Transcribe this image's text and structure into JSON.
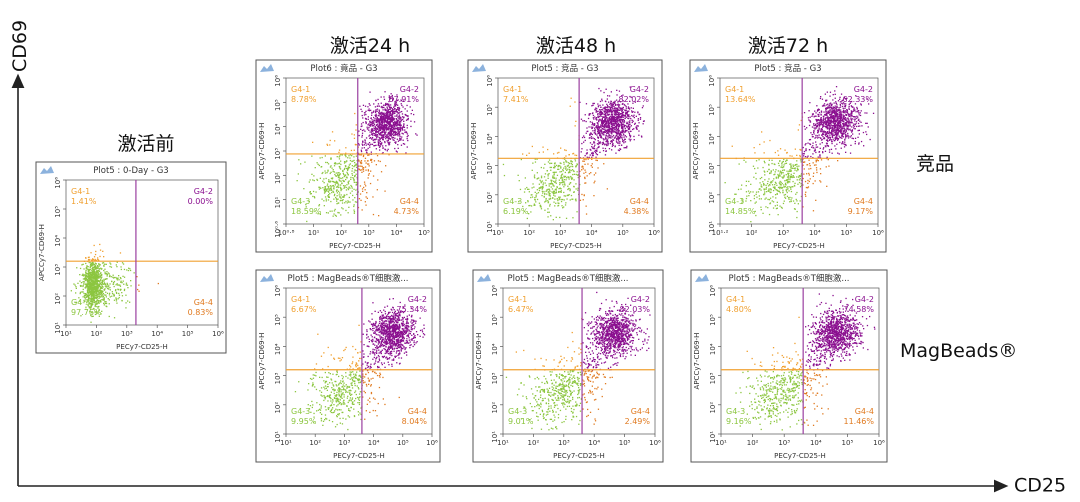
{
  "figure": {
    "y_axis_label": "CD69",
    "x_axis_label": "CD25",
    "row_labels": [
      "竞品",
      "MagBeads®"
    ],
    "colors": {
      "q1": "#f0a030",
      "q2": "#8a0f8f",
      "q3": "#8cc640",
      "q4": "#e07a20",
      "gate_h": "#f0a030",
      "gate_v": "#9b3fa0",
      "icon": "#6f9fd4"
    }
  },
  "chart_data": [
    {
      "id": "pre",
      "type": "scatter",
      "group_label": "激活前",
      "title": "Plot5 : 0-Day - G3",
      "xlabel": "PECy7-CD25-H",
      "ylabel": "APCCy7-CD69-H",
      "xticks": [
        "10¹",
        "10²",
        "10³",
        "10⁴",
        "10⁵",
        "10⁶"
      ],
      "yticks": [
        "10¹",
        "10²",
        "10³",
        "10⁴",
        "10⁵",
        "10⁶"
      ],
      "quadrants": [
        {
          "name": "G4-1",
          "value": "1.41%"
        },
        {
          "name": "G4-2",
          "value": "0.00%"
        },
        {
          "name": "G4-3",
          "value": "97.76%"
        },
        {
          "name": "G4-4",
          "value": "0.83%"
        }
      ],
      "points": 1100
    },
    {
      "id": "c24",
      "type": "scatter",
      "group_label": "激活24 h",
      "title": "Plot6 : 竟品 - G3",
      "xlabel": "PECy7-CD25-H",
      "ylabel": "APCCy7-CD69-H",
      "xticks": [
        "10⁰·⁸",
        "10¹",
        "10²",
        "10³",
        "10⁴",
        "10⁵"
      ],
      "yticks": [
        "10⁰·⁶",
        "10¹",
        "10²",
        "10³",
        "10⁴",
        "10⁵",
        "10⁶"
      ],
      "quadrants": [
        {
          "name": "G4-1",
          "value": "8.78%"
        },
        {
          "name": "G4-2",
          "value": "67.91%"
        },
        {
          "name": "G4-3",
          "value": "18.59%"
        },
        {
          "name": "G4-4",
          "value": "4.73%"
        }
      ],
      "points": 1500
    },
    {
      "id": "c48",
      "type": "scatter",
      "group_label": "激活48 h",
      "title": "Plot5 : 竞品 - G3",
      "xlabel": "PECy7-CD25-H",
      "ylabel": "APCCy7-CD69-H",
      "xticks": [
        "10¹",
        "10²",
        "10³",
        "10⁴",
        "10⁵",
        "10⁶"
      ],
      "yticks": [
        "10¹",
        "10²",
        "10³",
        "10⁴",
        "10⁵",
        "10⁶"
      ],
      "quadrants": [
        {
          "name": "G4-1",
          "value": "7.41%"
        },
        {
          "name": "G4-2",
          "value": "82.02%"
        },
        {
          "name": "G4-3",
          "value": "6.19%"
        },
        {
          "name": "G4-4",
          "value": "4.38%"
        }
      ],
      "points": 1500
    },
    {
      "id": "c72",
      "type": "scatter",
      "group_label": "激活72 h",
      "title": "Plot5 : 竞品 - G3",
      "xlabel": "PECy7-CD25-H",
      "ylabel": "APCCy7-CD69-H",
      "xticks": [
        "10¹·²",
        "10²",
        "10³",
        "10⁴",
        "10⁵",
        "10⁶"
      ],
      "yticks": [
        "10¹",
        "10²",
        "10³",
        "10⁴",
        "10⁵",
        "10⁶"
      ],
      "quadrants": [
        {
          "name": "G4-1",
          "value": "13.64%"
        },
        {
          "name": "G4-2",
          "value": "62.33%"
        },
        {
          "name": "G4-3",
          "value": "14.85%"
        },
        {
          "name": "G4-4",
          "value": "9.17%"
        }
      ],
      "points": 1500
    },
    {
      "id": "m24",
      "type": "scatter",
      "title": "Plot5 : MagBeads®T细胞激...",
      "xlabel": "PECy7-CD25-H",
      "ylabel": "APCCy7-CD69-H",
      "xticks": [
        "10¹",
        "10²",
        "10³",
        "10⁴",
        "10⁵",
        "10⁶"
      ],
      "yticks": [
        "10¹",
        "10²",
        "10³",
        "10⁴",
        "10⁵",
        "10⁶"
      ],
      "quadrants": [
        {
          "name": "G4-1",
          "value": "6.67%"
        },
        {
          "name": "G4-2",
          "value": "75.34%"
        },
        {
          "name": "G4-3",
          "value": "9.95%"
        },
        {
          "name": "G4-4",
          "value": "8.04%"
        }
      ],
      "points": 1500
    },
    {
      "id": "m48",
      "type": "scatter",
      "title": "Plot5 : MagBeads®T细胞激...",
      "xlabel": "PECy7-CD25-H",
      "ylabel": "APCCy7-CD69-H",
      "xticks": [
        "10¹",
        "10²",
        "10³",
        "10⁴",
        "10⁵",
        "10⁶"
      ],
      "yticks": [
        "10¹",
        "10²",
        "10³",
        "10⁴",
        "10⁵",
        "10⁶"
      ],
      "quadrants": [
        {
          "name": "G4-1",
          "value": "6.47%"
        },
        {
          "name": "G4-2",
          "value": "82.03%"
        },
        {
          "name": "G4-3",
          "value": "9.01%"
        },
        {
          "name": "G4-4",
          "value": "2.49%"
        }
      ],
      "points": 1500
    },
    {
      "id": "m72",
      "type": "scatter",
      "title": "Plot5 : MagBeads®T细胞激...",
      "xlabel": "PECy7-CD25-H",
      "ylabel": "APCCy7-CD69-H",
      "xticks": [
        "10¹",
        "10²",
        "10³",
        "10⁴",
        "10⁵",
        "10⁶"
      ],
      "yticks": [
        "10¹",
        "10²",
        "10³",
        "10⁴",
        "10⁵",
        "10⁶"
      ],
      "quadrants": [
        {
          "name": "G4-1",
          "value": "4.80%"
        },
        {
          "name": "G4-2",
          "value": "74.58%"
        },
        {
          "name": "G4-3",
          "value": "9.16%"
        },
        {
          "name": "G4-4",
          "value": "11.46%"
        }
      ],
      "points": 1500
    }
  ]
}
